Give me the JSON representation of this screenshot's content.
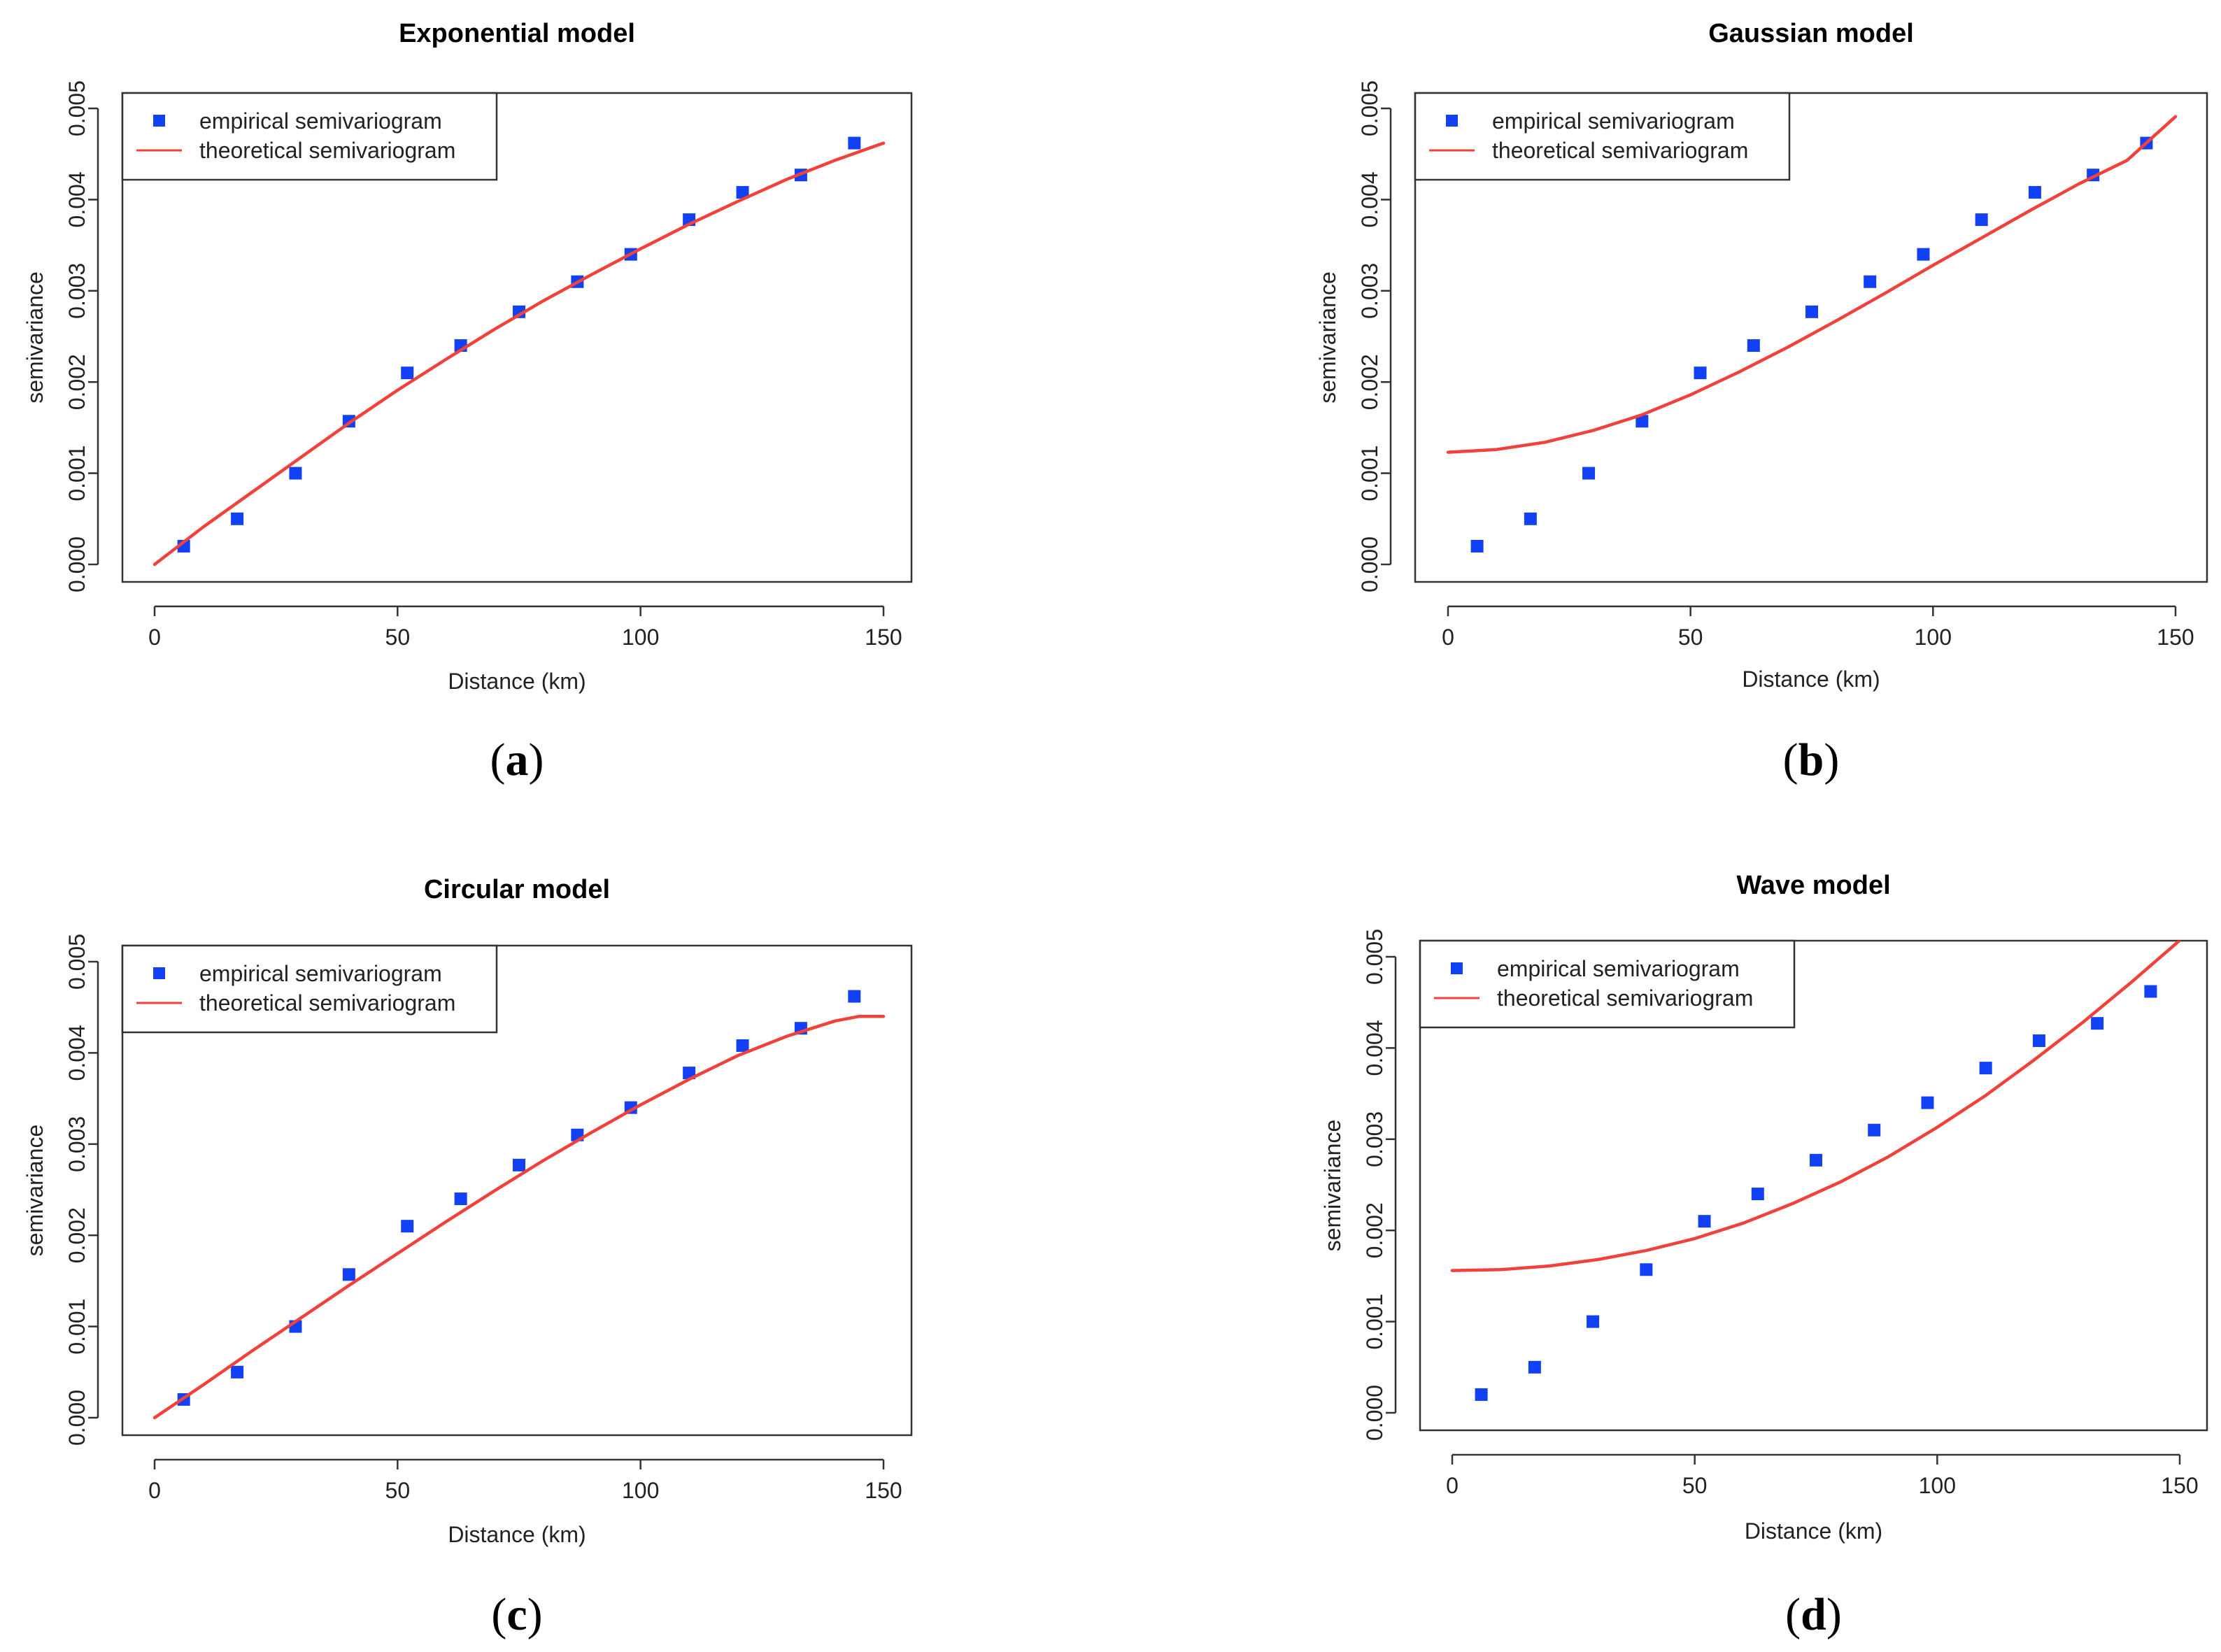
{
  "colors": {
    "empirical": "#1240f5",
    "theoretical": "#f0413a"
  },
  "chart_data": [
    {
      "type": "scatter",
      "title": "Exponential model",
      "caption": "a",
      "xlabel": "Distance (km)",
      "ylabel": "semivariance",
      "xlim": [
        0,
        150
      ],
      "ylim": [
        0,
        0.005
      ],
      "x_ticks": [
        "0",
        "50",
        "100",
        "150"
      ],
      "y_ticks": [
        "0.000",
        "0.001",
        "0.002",
        "0.003",
        "0.004",
        "0.005"
      ],
      "legend": [
        "empirical semivariogram",
        "theoretical semivariogram"
      ],
      "series": [
        {
          "name": "empirical semivariogram",
          "kind": "points",
          "x": [
            6,
            17,
            29,
            40,
            52,
            63,
            75,
            87,
            98,
            110,
            121,
            133,
            144
          ],
          "y": [
            0.0002,
            0.0005,
            0.001,
            0.00157,
            0.0021,
            0.0024,
            0.00277,
            0.0031,
            0.0034,
            0.00378,
            0.00408,
            0.00427,
            0.00462
          ]
        },
        {
          "name": "theoretical semivariogram",
          "kind": "line",
          "x": [
            0,
            10,
            20,
            30,
            40,
            50,
            60,
            70,
            80,
            90,
            100,
            110,
            120,
            130,
            140,
            150
          ],
          "y": [
            0,
            0.00041,
            0.00079,
            0.00117,
            0.00155,
            0.00191,
            0.00225,
            0.00258,
            0.00289,
            0.00318,
            0.00346,
            0.00373,
            0.00398,
            0.00422,
            0.00443,
            0.00462
          ]
        }
      ]
    },
    {
      "type": "scatter",
      "title": "Gaussian model",
      "caption": "b",
      "xlabel": "Distance (km)",
      "ylabel": "semivariance",
      "xlim": [
        0,
        150
      ],
      "ylim": [
        0,
        0.005
      ],
      "x_ticks": [
        "0",
        "50",
        "100",
        "150"
      ],
      "y_ticks": [
        "0.000",
        "0.001",
        "0.002",
        "0.003",
        "0.004",
        "0.005"
      ],
      "legend": [
        "empirical semivariogram",
        "theoretical semivariogram"
      ],
      "series": [
        {
          "name": "empirical semivariogram",
          "kind": "points",
          "x": [
            6,
            17,
            29,
            40,
            52,
            63,
            75,
            87,
            98,
            110,
            121,
            133,
            144
          ],
          "y": [
            0.0002,
            0.0005,
            0.001,
            0.00157,
            0.0021,
            0.0024,
            0.00277,
            0.0031,
            0.0034,
            0.00378,
            0.00408,
            0.00427,
            0.00462
          ]
        },
        {
          "name": "theoretical semivariogram",
          "kind": "line",
          "x": [
            0,
            10,
            20,
            30,
            40,
            50,
            60,
            70,
            80,
            90,
            100,
            110,
            120,
            130,
            140,
            150
          ],
          "y": [
            0.00123,
            0.00126,
            0.00134,
            0.00147,
            0.00164,
            0.00186,
            0.00211,
            0.00238,
            0.00267,
            0.00297,
            0.00328,
            0.00358,
            0.00388,
            0.00417,
            0.00443,
            0.00491
          ]
        }
      ]
    },
    {
      "type": "scatter",
      "title": "Circular model",
      "caption": "c",
      "xlabel": "Distance (km)",
      "ylabel": "semivariance",
      "xlim": [
        0,
        150
      ],
      "ylim": [
        0,
        0.005
      ],
      "x_ticks": [
        "0",
        "50",
        "100",
        "150"
      ],
      "y_ticks": [
        "0.000",
        "0.001",
        "0.002",
        "0.003",
        "0.004",
        "0.005"
      ],
      "legend": [
        "empirical semivariogram",
        "theoretical semivariogram"
      ],
      "series": [
        {
          "name": "empirical semivariogram",
          "kind": "points",
          "x": [
            6,
            17,
            29,
            40,
            52,
            63,
            75,
            87,
            98,
            110,
            121,
            133,
            144
          ],
          "y": [
            0.0002,
            0.0005,
            0.001,
            0.00157,
            0.0021,
            0.0024,
            0.00277,
            0.0031,
            0.0034,
            0.00378,
            0.00408,
            0.00427,
            0.00462
          ]
        },
        {
          "name": "theoretical semivariogram",
          "kind": "line",
          "x": [
            0,
            10,
            20,
            30,
            40,
            50,
            60,
            70,
            80,
            90,
            100,
            110,
            120,
            130,
            140,
            145,
            150
          ],
          "y": [
            0,
            0.00036,
            0.00073,
            0.00109,
            0.00145,
            0.0018,
            0.00215,
            0.00249,
            0.00282,
            0.00313,
            0.00343,
            0.00371,
            0.00397,
            0.00418,
            0.00435,
            0.0044,
            0.0044
          ]
        }
      ]
    },
    {
      "type": "scatter",
      "title": "Wave model",
      "caption": "d",
      "xlabel": "Distance (km)",
      "ylabel": "semivariance",
      "xlim": [
        0,
        150
      ],
      "ylim": [
        0,
        0.005
      ],
      "x_ticks": [
        "0",
        "50",
        "100",
        "150"
      ],
      "y_ticks": [
        "0.000",
        "0.001",
        "0.002",
        "0.003",
        "0.004",
        "0.005"
      ],
      "legend": [
        "empirical semivariogram",
        "theoretical semivariogram"
      ],
      "series": [
        {
          "name": "empirical semivariogram",
          "kind": "points",
          "x": [
            6,
            17,
            29,
            40,
            52,
            63,
            75,
            87,
            98,
            110,
            121,
            133,
            144
          ],
          "y": [
            0.0002,
            0.0005,
            0.001,
            0.00157,
            0.0021,
            0.0024,
            0.00277,
            0.0031,
            0.0034,
            0.00378,
            0.00408,
            0.00427,
            0.00462
          ]
        },
        {
          "name": "theoretical semivariogram",
          "kind": "line",
          "x": [
            0,
            10,
            20,
            30,
            40,
            50,
            60,
            70,
            80,
            90,
            100,
            110,
            120,
            130,
            140,
            150
          ],
          "y": [
            0.00156,
            0.00157,
            0.00161,
            0.00168,
            0.00178,
            0.00191,
            0.00208,
            0.00229,
            0.00253,
            0.00281,
            0.00313,
            0.00348,
            0.00387,
            0.00428,
            0.00472,
            0.00518
          ]
        }
      ]
    }
  ]
}
